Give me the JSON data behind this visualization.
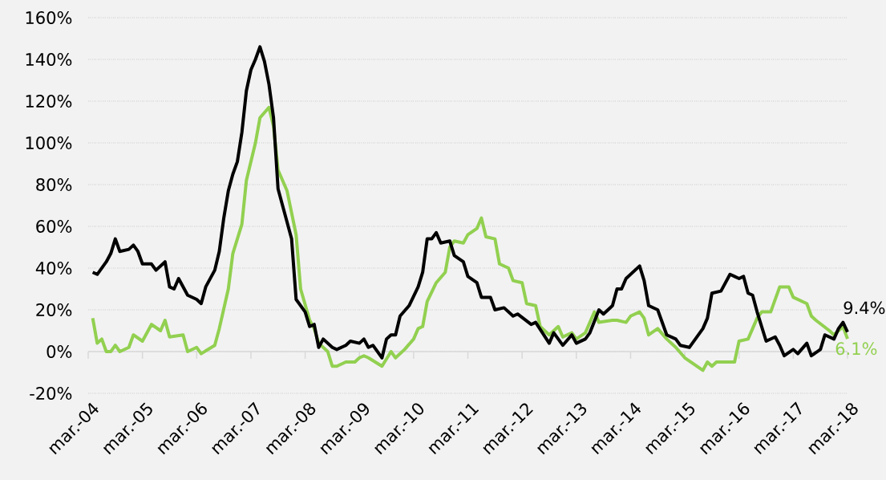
{
  "chart_data": {
    "type": "line",
    "xlim": [
      "2004-03",
      "2018-03"
    ],
    "ylim": [
      -20,
      160
    ],
    "xticks": [
      {
        "value": "2004-03",
        "label": "mar.-04"
      },
      {
        "value": "2005-03",
        "label": "mar.-05"
      },
      {
        "value": "2006-03",
        "label": "mar.-06"
      },
      {
        "value": "2007-03",
        "label": "mar.-07"
      },
      {
        "value": "2008-03",
        "label": "mar.-08"
      },
      {
        "value": "2009-03",
        "label": "mar.-09"
      },
      {
        "value": "2010-03",
        "label": "mar.-10"
      },
      {
        "value": "2011-03",
        "label": "mar.-11"
      },
      {
        "value": "2012-03",
        "label": "mar.-12"
      },
      {
        "value": "2013-03",
        "label": "mar.-13"
      },
      {
        "value": "2014-03",
        "label": "mar.-14"
      },
      {
        "value": "2015-03",
        "label": "mar.-15"
      },
      {
        "value": "2016-03",
        "label": "mar.-16"
      },
      {
        "value": "2017-03",
        "label": "mar.-17"
      },
      {
        "value": "2018-03",
        "label": "mar.-18"
      }
    ],
    "yticks": [
      {
        "value": -20,
        "label": "-20%"
      },
      {
        "value": 0,
        "label": "0%"
      },
      {
        "value": 20,
        "label": "20%"
      },
      {
        "value": 40,
        "label": "40%"
      },
      {
        "value": 60,
        "label": "60%"
      },
      {
        "value": 80,
        "label": "80%"
      },
      {
        "value": 100,
        "label": "100%"
      },
      {
        "value": 120,
        "label": "120%"
      },
      {
        "value": 140,
        "label": "140%"
      },
      {
        "value": 160,
        "label": "160%"
      }
    ],
    "grid": "y",
    "legend": false,
    "marker": "none",
    "line_style": "solid",
    "series": [
      {
        "color": "#92d050",
        "x": [
          "2004-04",
          "2004-05",
          "2004-06",
          "2004-07",
          "2004-08",
          "2004-09",
          "2004-10",
          "2004-12",
          "2005-01",
          "2005-03",
          "2005-05",
          "2005-07",
          "2005-08",
          "2005-09",
          "2005-12",
          "2006-01",
          "2006-03",
          "2006-04",
          "2006-07",
          "2006-08",
          "2006-10",
          "2006-11",
          "2007-01",
          "2007-02",
          "2007-03",
          "2007-04",
          "2007-05",
          "2007-07",
          "2007-08",
          "2007-09",
          "2007-11",
          "2008-01",
          "2008-02",
          "2008-04",
          "2008-05",
          "2008-06",
          "2008-08",
          "2008-09",
          "2008-10",
          "2008-12",
          "2009-02",
          "2009-03",
          "2009-04",
          "2009-05",
          "2009-08",
          "2009-10",
          "2009-11",
          "2010-01",
          "2010-03",
          "2010-04",
          "2010-05",
          "2010-06",
          "2010-08",
          "2010-10",
          "2010-11",
          "2010-12",
          "2011-02",
          "2011-03",
          "2011-05",
          "2011-06",
          "2011-07",
          "2011-09",
          "2011-10",
          "2011-12",
          "2012-01",
          "2012-03",
          "2012-04",
          "2012-06",
          "2012-07",
          "2012-09",
          "2012-11",
          "2012-12",
          "2013-02",
          "2013-03",
          "2013-05",
          "2013-07",
          "2013-08",
          "2013-11",
          "2013-12",
          "2014-02",
          "2014-03",
          "2014-05",
          "2014-06",
          "2014-07",
          "2014-09",
          "2014-11",
          "2015-01",
          "2015-03",
          "2015-07",
          "2015-08",
          "2015-09",
          "2015-10",
          "2015-12",
          "2016-02",
          "2016-03",
          "2016-05",
          "2016-07",
          "2016-08",
          "2016-10",
          "2016-12",
          "2017-02",
          "2017-03",
          "2017-06",
          "2017-07",
          "2017-08",
          "2017-11",
          "2017-12",
          "2018-01",
          "2018-02",
          "2018-03"
        ],
        "values": [
          16,
          4,
          6,
          0,
          0,
          3,
          0,
          2,
          8,
          5,
          13,
          10,
          15,
          7,
          8,
          0,
          2,
          -1,
          3,
          11,
          30,
          47,
          61,
          82,
          91,
          100,
          112,
          117,
          108,
          87,
          77,
          56,
          30,
          15,
          11,
          4,
          0,
          -7,
          -7,
          -5,
          -5,
          -3,
          -2,
          -3,
          -7,
          0,
          -3,
          1,
          6,
          11,
          12,
          24,
          33,
          38,
          50,
          53,
          52,
          56,
          59,
          64,
          55,
          54,
          42,
          40,
          34,
          33,
          23,
          22,
          12,
          8,
          12,
          7,
          9,
          6,
          9,
          19,
          14,
          15,
          15,
          14,
          17,
          19,
          16,
          8,
          11,
          6,
          2,
          -3,
          -9,
          -5,
          -7,
          -5,
          -5,
          -5,
          5,
          6,
          16,
          19,
          19,
          31,
          31,
          26,
          23,
          17,
          15,
          10,
          8,
          10,
          12,
          6.1
        ]
      },
      {
        "color": "#000000",
        "x": [
          "2004-04",
          "2004-05",
          "2004-07",
          "2004-08",
          "2004-09",
          "2004-10",
          "2004-12",
          "2005-01",
          "2005-02",
          "2005-03",
          "2005-05",
          "2005-06",
          "2005-08",
          "2005-09",
          "2005-10",
          "2005-11",
          "2006-01",
          "2006-03",
          "2006-04",
          "2006-05",
          "2006-07",
          "2006-08",
          "2006-09",
          "2006-10",
          "2006-11",
          "2006-12",
          "2007-01",
          "2007-02",
          "2007-03",
          "2007-04",
          "2007-05",
          "2007-06",
          "2007-07",
          "2007-08",
          "2007-09",
          "2007-10",
          "2007-12",
          "2008-01",
          "2008-03",
          "2008-04",
          "2008-05",
          "2008-06",
          "2008-07",
          "2008-09",
          "2008-10",
          "2008-12",
          "2009-01",
          "2009-03",
          "2009-04",
          "2009-05",
          "2009-06",
          "2009-08",
          "2009-09",
          "2009-10",
          "2009-11",
          "2009-12",
          "2010-02",
          "2010-04",
          "2010-05",
          "2010-06",
          "2010-07",
          "2010-08",
          "2010-09",
          "2010-11",
          "2010-12",
          "2011-02",
          "2011-03",
          "2011-05",
          "2011-06",
          "2011-08",
          "2011-09",
          "2011-11",
          "2012-01",
          "2012-02",
          "2012-05",
          "2012-06",
          "2012-09",
          "2012-10",
          "2012-12",
          "2013-02",
          "2013-03",
          "2013-05",
          "2013-06",
          "2013-08",
          "2013-09",
          "2013-11",
          "2013-12",
          "2014-01",
          "2014-02",
          "2014-05",
          "2014-06",
          "2014-07",
          "2014-09",
          "2014-11",
          "2015-01",
          "2015-02",
          "2015-04",
          "2015-07",
          "2015-08",
          "2015-09",
          "2015-11",
          "2016-01",
          "2016-02",
          "2016-03",
          "2016-04",
          "2016-05",
          "2016-06",
          "2016-07",
          "2016-09",
          "2016-11",
          "2016-12",
          "2017-01",
          "2017-03",
          "2017-04",
          "2017-06",
          "2017-07",
          "2017-09",
          "2017-10",
          "2017-12",
          "2018-01",
          "2018-02",
          "2018-03"
        ],
        "values": [
          38,
          37,
          43,
          47,
          54,
          48,
          49,
          51,
          48,
          42,
          42,
          39,
          43,
          31,
          30,
          35,
          27,
          25,
          23,
          31,
          39,
          48,
          64,
          77,
          85,
          91,
          105,
          125,
          135,
          140,
          146,
          139,
          128,
          112,
          78,
          70,
          54,
          25,
          19,
          12,
          13,
          2,
          6,
          2,
          1,
          3,
          5,
          4,
          6,
          2,
          3,
          -3,
          6,
          8,
          8,
          17,
          22,
          31,
          38,
          54,
          54,
          57,
          52,
          53,
          46,
          43,
          36,
          33,
          26,
          26,
          20,
          21,
          17,
          18,
          13,
          14,
          4,
          9,
          3,
          8,
          4,
          6,
          9,
          20,
          18,
          22,
          30,
          30,
          35,
          41,
          34,
          22,
          20,
          8,
          6,
          3,
          2,
          11,
          16,
          28,
          29,
          37,
          36,
          35,
          36,
          28,
          27,
          19,
          5,
          7,
          3,
          -2,
          1,
          -1,
          4,
          -2,
          1,
          8,
          6,
          11,
          14,
          9.4
        ]
      }
    ],
    "annotations": [
      {
        "text": "6.1%",
        "x": "2018-03",
        "y": 6.1
      },
      {
        "text": "9.4%",
        "x": "2018-03",
        "y": 9.4
      }
    ]
  }
}
